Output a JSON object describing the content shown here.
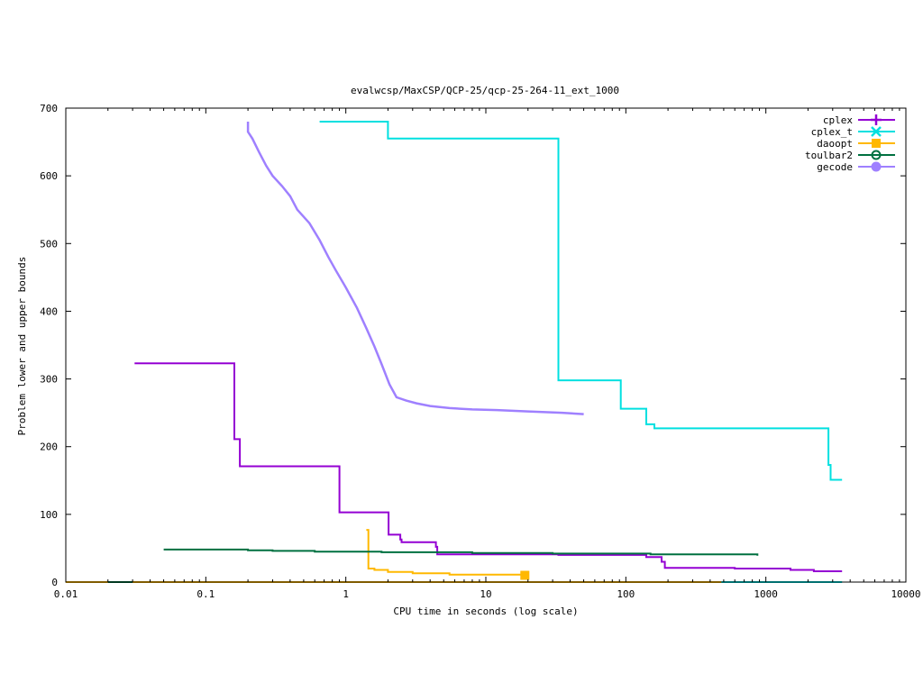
{
  "chart_data": {
    "type": "line",
    "title": "evalwcsp/MaxCSP/QCP-25/qcp-25-264-11_ext_1000",
    "xlabel": "CPU time in seconds (log scale)",
    "ylabel": "Problem lower and upper bounds",
    "x_scale": "log",
    "xlim": [
      0.01,
      10000
    ],
    "ylim": [
      0,
      700
    ],
    "x_ticks": [
      0.01,
      0.1,
      1,
      10,
      100,
      1000,
      10000
    ],
    "x_tick_labels": [
      "0.01",
      "0.1",
      "1",
      "10",
      "100",
      "1000",
      "10000"
    ],
    "y_ticks": [
      0,
      100,
      200,
      300,
      400,
      500,
      600,
      700
    ],
    "y_tick_labels": [
      "0",
      "100",
      "200",
      "300",
      "400",
      "500",
      "600",
      "700"
    ],
    "grid": false,
    "legend_position": "top-right",
    "series": [
      {
        "name": "cplex",
        "color": "#9400d3",
        "marker": "plus",
        "step": true,
        "points": [
          [
            0.031,
            323
          ],
          [
            0.16,
            323
          ],
          [
            0.16,
            211
          ],
          [
            0.175,
            211
          ],
          [
            0.175,
            171
          ],
          [
            0.9,
            171
          ],
          [
            0.9,
            103
          ],
          [
            2.02,
            103
          ],
          [
            2.02,
            70
          ],
          [
            2.45,
            70
          ],
          [
            2.45,
            63
          ],
          [
            2.5,
            63
          ],
          [
            2.5,
            59
          ],
          [
            4.4,
            59
          ],
          [
            4.4,
            52
          ],
          [
            4.5,
            52
          ],
          [
            4.5,
            41
          ],
          [
            33,
            41
          ],
          [
            33,
            40
          ],
          [
            140,
            40
          ],
          [
            140,
            37
          ],
          [
            180,
            37
          ],
          [
            180,
            30
          ],
          [
            190,
            30
          ],
          [
            190,
            21
          ],
          [
            600,
            21
          ],
          [
            600,
            20
          ],
          [
            1500,
            20
          ],
          [
            1500,
            18
          ],
          [
            2200,
            18
          ],
          [
            2200,
            16
          ],
          [
            3500,
            16
          ]
        ]
      },
      {
        "name": "cplex_t",
        "color": "#00e0e0",
        "marker": "cross",
        "step": true,
        "points": [
          [
            0.65,
            680
          ],
          [
            2.0,
            680
          ],
          [
            2.0,
            655
          ],
          [
            33,
            655
          ],
          [
            33,
            298
          ],
          [
            92,
            298
          ],
          [
            92,
            256
          ],
          [
            140,
            256
          ],
          [
            140,
            233
          ],
          [
            160,
            233
          ],
          [
            160,
            227
          ],
          [
            2800,
            227
          ],
          [
            2800,
            173
          ],
          [
            2900,
            173
          ],
          [
            2900,
            151
          ],
          [
            3500,
            151
          ]
        ],
        "lower_bound": [
          [
            480,
            0
          ],
          [
            3500,
            0
          ]
        ]
      },
      {
        "name": "daoopt",
        "color": "#ffb800",
        "marker": "square",
        "step": true,
        "points": [
          [
            1.4,
            77
          ],
          [
            1.45,
            77
          ],
          [
            1.45,
            20
          ],
          [
            1.6,
            20
          ],
          [
            1.6,
            18
          ],
          [
            2.0,
            18
          ],
          [
            2.0,
            15
          ],
          [
            3.0,
            15
          ],
          [
            3.0,
            13
          ],
          [
            5.5,
            13
          ],
          [
            5.5,
            11
          ],
          [
            18,
            11
          ],
          [
            18,
            10
          ],
          [
            19,
            10
          ]
        ],
        "lower_bound": [
          [
            0.01,
            0
          ],
          [
            480,
            0
          ]
        ],
        "end_marker": [
          19,
          10
        ]
      },
      {
        "name": "toulbar2",
        "color": "#007040",
        "marker": "circle",
        "step": true,
        "points": [
          [
            0.05,
            48
          ],
          [
            0.2,
            48
          ],
          [
            0.2,
            47
          ],
          [
            0.3,
            47
          ],
          [
            0.3,
            46
          ],
          [
            0.6,
            46
          ],
          [
            0.6,
            45
          ],
          [
            1.8,
            45
          ],
          [
            1.8,
            44
          ],
          [
            8,
            44
          ],
          [
            8,
            43
          ],
          [
            30,
            43
          ],
          [
            30,
            42
          ],
          [
            150,
            42
          ],
          [
            150,
            41
          ],
          [
            870,
            41
          ],
          [
            870,
            39
          ]
        ],
        "lower_bound": [
          [
            0.02,
            0
          ],
          [
            0.03,
            0
          ]
        ]
      },
      {
        "name": "gecode",
        "color": "#9f80ff",
        "marker": "circle-filled",
        "step": false,
        "points": [
          [
            0.2,
            680
          ],
          [
            0.2,
            665
          ],
          [
            0.215,
            655
          ],
          [
            0.24,
            635
          ],
          [
            0.27,
            615
          ],
          [
            0.3,
            600
          ],
          [
            0.35,
            585
          ],
          [
            0.4,
            570
          ],
          [
            0.45,
            550
          ],
          [
            0.55,
            530
          ],
          [
            0.65,
            505
          ],
          [
            0.75,
            480
          ],
          [
            0.85,
            460
          ],
          [
            1.0,
            435
          ],
          [
            1.2,
            405
          ],
          [
            1.4,
            375
          ],
          [
            1.6,
            348
          ],
          [
            1.8,
            322
          ],
          [
            2.05,
            292
          ],
          [
            2.3,
            273
          ],
          [
            2.7,
            268
          ],
          [
            3.2,
            264
          ],
          [
            4.0,
            260
          ],
          [
            5.5,
            257
          ],
          [
            8.0,
            255
          ],
          [
            12.0,
            254
          ],
          [
            20.0,
            252
          ],
          [
            35.0,
            250
          ],
          [
            50.0,
            248
          ]
        ]
      }
    ]
  }
}
